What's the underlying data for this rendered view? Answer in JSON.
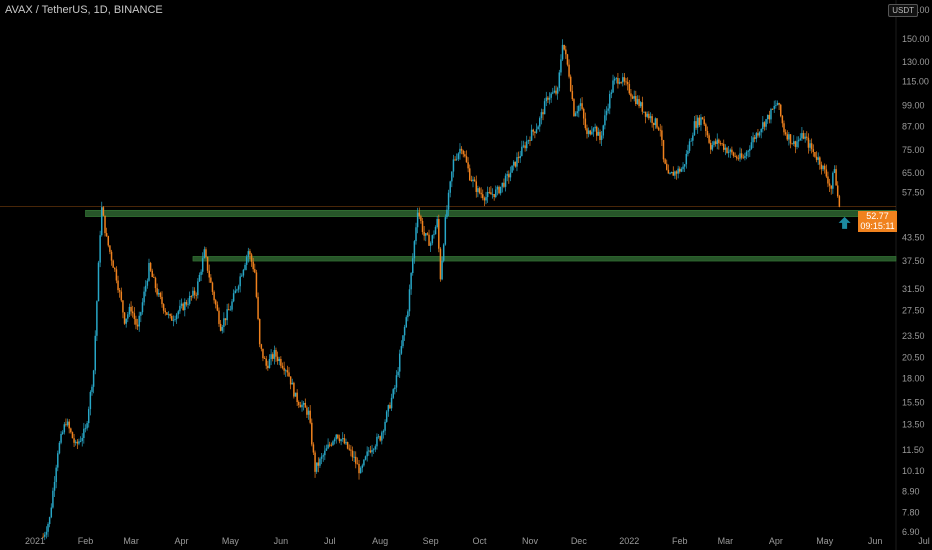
{
  "header": {
    "title": "AVAX / TetherUS, 1D, BINANCE"
  },
  "price": {
    "last": "52.77",
    "countdown": "09:15:11",
    "unit": "USDT"
  },
  "colors": {
    "up": "#28a7c7",
    "down": "#f0821e",
    "zone": "#2c5f2e",
    "bg": "#000000"
  },
  "chart_data": {
    "type": "candlestick",
    "title": "",
    "y_axis_scale": "log",
    "ylim": [
      6.9,
      180
    ],
    "xlim": [
      "2021-01-01",
      "2022-07-01"
    ],
    "y_ticks": [
      "180.00",
      "150.00",
      "130.00",
      "115.00",
      "99.00",
      "87.00",
      "75.00",
      "65.00",
      "57.50",
      "43.50",
      "37.50",
      "31.50",
      "27.50",
      "23.50",
      "20.50",
      "18.00",
      "15.50",
      "13.50",
      "11.50",
      "10.10",
      "8.90",
      "7.80",
      "6.90"
    ],
    "x_ticks": [
      {
        "label": "2021",
        "date": "2021-01-01"
      },
      {
        "label": "Feb",
        "date": "2021-02-01"
      },
      {
        "label": "Mar",
        "date": "2021-03-01"
      },
      {
        "label": "Apr",
        "date": "2021-04-01"
      },
      {
        "label": "May",
        "date": "2021-05-01"
      },
      {
        "label": "Jun",
        "date": "2021-06-01"
      },
      {
        "label": "Jul",
        "date": "2021-07-01"
      },
      {
        "label": "Aug",
        "date": "2021-08-01"
      },
      {
        "label": "Sep",
        "date": "2021-09-01"
      },
      {
        "label": "Oct",
        "date": "2021-10-01"
      },
      {
        "label": "Nov",
        "date": "2021-11-01"
      },
      {
        "label": "Dec",
        "date": "2021-12-01"
      },
      {
        "label": "2022",
        "date": "2022-01-01"
      },
      {
        "label": "Feb",
        "date": "2022-02-01"
      },
      {
        "label": "Mar",
        "date": "2022-03-01"
      },
      {
        "label": "Apr",
        "date": "2022-04-01"
      },
      {
        "label": "May",
        "date": "2022-05-01"
      },
      {
        "label": "Jun",
        "date": "2022-06-01"
      },
      {
        "label": "Jul",
        "date": "2022-07-01"
      }
    ],
    "price_path": [
      [
        "2021-01-06",
        6.7
      ],
      [
        "2021-01-10",
        7.5
      ],
      [
        "2021-01-15",
        11.5
      ],
      [
        "2021-01-20",
        13.8
      ],
      [
        "2021-01-26",
        11.8
      ],
      [
        "2021-02-01",
        13.0
      ],
      [
        "2021-02-06",
        19
      ],
      [
        "2021-02-10",
        45
      ],
      [
        "2021-02-11",
        52
      ],
      [
        "2021-02-14",
        43
      ],
      [
        "2021-02-20",
        34
      ],
      [
        "2021-02-25",
        26
      ],
      [
        "2021-03-01",
        28
      ],
      [
        "2021-03-05",
        24.5
      ],
      [
        "2021-03-12",
        36
      ],
      [
        "2021-03-18",
        30
      ],
      [
        "2021-03-25",
        26
      ],
      [
        "2021-04-01",
        28
      ],
      [
        "2021-04-10",
        31
      ],
      [
        "2021-04-15",
        39.5
      ],
      [
        "2021-04-20",
        31
      ],
      [
        "2021-04-25",
        25
      ],
      [
        "2021-05-01",
        28
      ],
      [
        "2021-05-07",
        34
      ],
      [
        "2021-05-12",
        40
      ],
      [
        "2021-05-16",
        35
      ],
      [
        "2021-05-19",
        22
      ],
      [
        "2021-05-23",
        19.5
      ],
      [
        "2021-05-28",
        21
      ],
      [
        "2021-06-05",
        19
      ],
      [
        "2021-06-10",
        16
      ],
      [
        "2021-06-18",
        14.5
      ],
      [
        "2021-06-22",
        10.2
      ],
      [
        "2021-06-28",
        11.3
      ],
      [
        "2021-07-05",
        12.8
      ],
      [
        "2021-07-10",
        12.0
      ],
      [
        "2021-07-15",
        11.1
      ],
      [
        "2021-07-20",
        10.0
      ],
      [
        "2021-07-25",
        11.5
      ],
      [
        "2021-08-01",
        12.5
      ],
      [
        "2021-08-10",
        17
      ],
      [
        "2021-08-18",
        28
      ],
      [
        "2021-08-24",
        52
      ],
      [
        "2021-08-28",
        44
      ],
      [
        "2021-09-01",
        42
      ],
      [
        "2021-09-05",
        48
      ],
      [
        "2021-09-07",
        34
      ],
      [
        "2021-09-10",
        48
      ],
      [
        "2021-09-15",
        70
      ],
      [
        "2021-09-20",
        77
      ],
      [
        "2021-09-25",
        64
      ],
      [
        "2021-09-30",
        58
      ],
      [
        "2021-10-05",
        56
      ],
      [
        "2021-10-12",
        58
      ],
      [
        "2021-10-18",
        63
      ],
      [
        "2021-10-25",
        72
      ],
      [
        "2021-11-01",
        82
      ],
      [
        "2021-11-06",
        88
      ],
      [
        "2021-11-12",
        105
      ],
      [
        "2021-11-18",
        108
      ],
      [
        "2021-11-21",
        148
      ],
      [
        "2021-11-25",
        121
      ],
      [
        "2021-11-28",
        95
      ],
      [
        "2021-12-02",
        100
      ],
      [
        "2021-12-06",
        82
      ],
      [
        "2021-12-10",
        88
      ],
      [
        "2021-12-14",
        80
      ],
      [
        "2021-12-18",
        96
      ],
      [
        "2021-12-22",
        114
      ],
      [
        "2021-12-26",
        118
      ],
      [
        "2021-12-30",
        112
      ],
      [
        "2022-01-05",
        103
      ],
      [
        "2022-01-10",
        96
      ],
      [
        "2022-01-15",
        91
      ],
      [
        "2022-01-20",
        86
      ],
      [
        "2022-01-22",
        70
      ],
      [
        "2022-01-25",
        63
      ],
      [
        "2022-01-28",
        65
      ],
      [
        "2022-02-03",
        67
      ],
      [
        "2022-02-10",
        88
      ],
      [
        "2022-02-15",
        92
      ],
      [
        "2022-02-20",
        77
      ],
      [
        "2022-02-25",
        79
      ],
      [
        "2022-03-01",
        76
      ],
      [
        "2022-03-07",
        72
      ],
      [
        "2022-03-12",
        71
      ],
      [
        "2022-03-17",
        79
      ],
      [
        "2022-03-23",
        87
      ],
      [
        "2022-03-28",
        93
      ],
      [
        "2022-04-02",
        101
      ],
      [
        "2022-04-06",
        85
      ],
      [
        "2022-04-12",
        78
      ],
      [
        "2022-04-18",
        82
      ],
      [
        "2022-04-24",
        74
      ],
      [
        "2022-04-28",
        70
      ],
      [
        "2022-05-02",
        64
      ],
      [
        "2022-05-05",
        59
      ],
      [
        "2022-05-07",
        68
      ],
      [
        "2022-05-08",
        60
      ],
      [
        "2022-05-10",
        52.77
      ]
    ],
    "annotations": [
      {
        "type": "zone",
        "from": "2021-02-01",
        "to": "2022-07-01",
        "y_low": 49.5,
        "y_high": 51.5
      },
      {
        "type": "zone",
        "from": "2021-04-08",
        "to": "2022-07-01",
        "y_low": 37.5,
        "y_high": 38.6
      },
      {
        "type": "arrow-up",
        "date": "2022-05-12",
        "y": 47
      }
    ]
  }
}
